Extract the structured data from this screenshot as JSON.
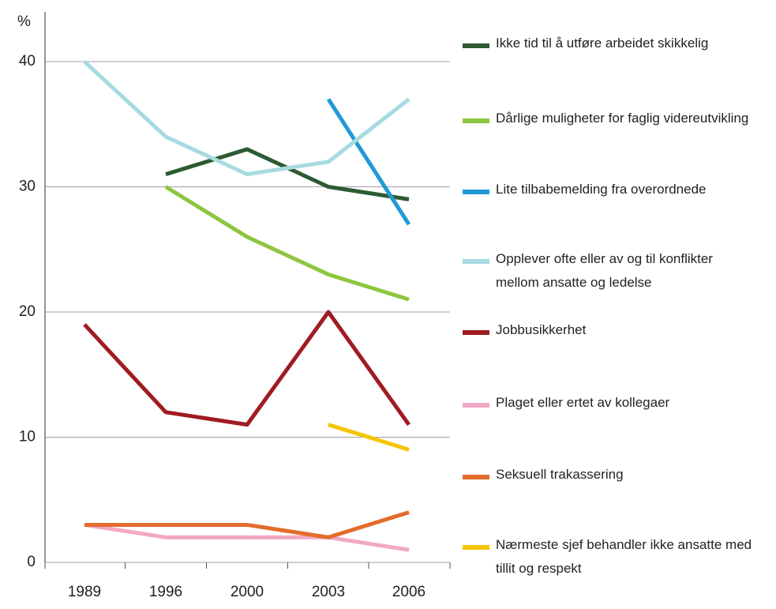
{
  "chart_data": {
    "type": "line",
    "y_label": "%",
    "categories": [
      "1989",
      "1996",
      "2000",
      "2003",
      "2006"
    ],
    "ylim": [
      0,
      40
    ],
    "yticks": [
      0,
      10,
      20,
      30,
      40
    ],
    "grid": true,
    "series": [
      {
        "name": "Ikke tid til å utføre arbeidet skikkelig",
        "color": "#2d5a32",
        "values": [
          null,
          31,
          33,
          30,
          29
        ]
      },
      {
        "name": "Dårlige muligheter for faglig videreutvikling",
        "color": "#8dc63f",
        "values": [
          null,
          30,
          26,
          23,
          21
        ]
      },
      {
        "name": "Lite tilbabemelding fra overordnede",
        "color": "#1f9ad6",
        "values": [
          null,
          null,
          null,
          37,
          27
        ]
      },
      {
        "name": "Opplever ofte eller av og til konflikter mellom ansatte og ledelse",
        "color": "#a6dbe0",
        "values": [
          40,
          34,
          31,
          32,
          37
        ]
      },
      {
        "name": "Jobbusikkerhet",
        "color": "#a01c22",
        "values": [
          19,
          12,
          11,
          20,
          11
        ]
      },
      {
        "name": "Plaget eller ertet av kollegaer",
        "color": "#f2a7c5",
        "values": [
          3,
          2,
          2,
          2,
          1
        ]
      },
      {
        "name": "Seksuell trakassering",
        "color": "#e36c2c",
        "values": [
          3,
          3,
          3,
          2,
          4
        ]
      },
      {
        "name": "Nærmeste sjef behandler ikke ansatte med tillit og respekt",
        "color": "#f5c400",
        "values": [
          null,
          null,
          null,
          11,
          9
        ]
      }
    ]
  }
}
